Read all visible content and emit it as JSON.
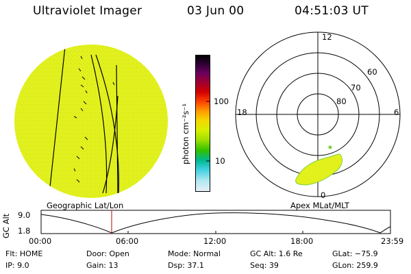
{
  "header": {
    "instrument": "Ultraviolet Imager",
    "date": "03 Jun 00",
    "time": "04:51:03 UT"
  },
  "colorbar": {
    "unit_label": "photon cm⁻²s⁻¹",
    "ticks": [
      "100",
      "10"
    ],
    "colors": [
      "#000000",
      "#2a0030",
      "#6a0060",
      "#a00030",
      "#d00000",
      "#ff4000",
      "#ff9a00",
      "#f5d800",
      "#d8f000",
      "#a0e000",
      "#30c000",
      "#00b890",
      "#40d0e0",
      "#b0e8f0",
      "#e8f0f8"
    ]
  },
  "left_panel": {
    "caption": "Geographic Lat/Lon",
    "fill_color": "#e2f01c"
  },
  "right_panel": {
    "caption": "Apex MLat/MLT",
    "mlt_labels": {
      "top": "12",
      "left": "18",
      "right": "6",
      "bottom": "0"
    },
    "lat_labels": [
      "60",
      "70",
      "80"
    ],
    "aurora_color": "#e2f01c"
  },
  "timeline": {
    "axis_label": "GC Alt",
    "y_top": "9.0",
    "y_bottom": "1.8",
    "x_ticks": [
      "00:00",
      "06:00",
      "12:00",
      "18:00",
      "23:59"
    ],
    "marker_color": "#c00000"
  },
  "info": {
    "flt": "Flt:  HOME",
    "ip": "IP:  9.0",
    "door": "Door:  Open",
    "gain": "Gain:  13",
    "mode": "Mode:  Normal",
    "dsp": "Dsp:      37.1",
    "gcalt": "GC Alt:  1.6 Re",
    "seq": "Seq:  39",
    "glat": "GLat:  −75.9",
    "glon": "GLon:  259.9"
  }
}
